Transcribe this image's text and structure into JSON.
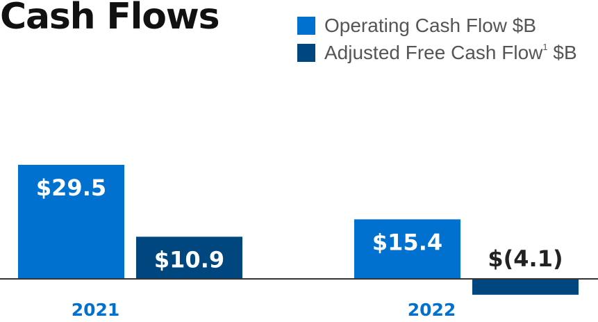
{
  "header": {
    "title": "Cash Flows"
  },
  "legend": {
    "items": [
      {
        "label": "Operating Cash Flow $B",
        "footnote": "",
        "suffix": "",
        "color": "#0071CE"
      },
      {
        "label": "Adjusted Free Cash Flow",
        "footnote": "1",
        "suffix": " $B",
        "color": "#00467F"
      }
    ]
  },
  "colors": {
    "axis": "#333333",
    "category_label": "#0071CE",
    "value_on_bar": "#ffffff",
    "value_off_bar": "#222222"
  },
  "chart_data": {
    "type": "bar",
    "title": "Cash Flows",
    "xlabel": "",
    "ylabel": "",
    "categories": [
      "2021",
      "2022"
    ],
    "series": [
      {
        "name": "Operating Cash Flow $B",
        "values": [
          29.5,
          15.4
        ],
        "labels": [
          "$29.5",
          "$15.4"
        ]
      },
      {
        "name": "Adjusted Free Cash Flow $B",
        "values": [
          10.9,
          -4.1
        ],
        "labels": [
          "$10.9",
          "$(4.1)"
        ]
      }
    ],
    "ylim": [
      -4.1,
      29.5
    ],
    "grid": false,
    "legend_position": "top-right"
  }
}
